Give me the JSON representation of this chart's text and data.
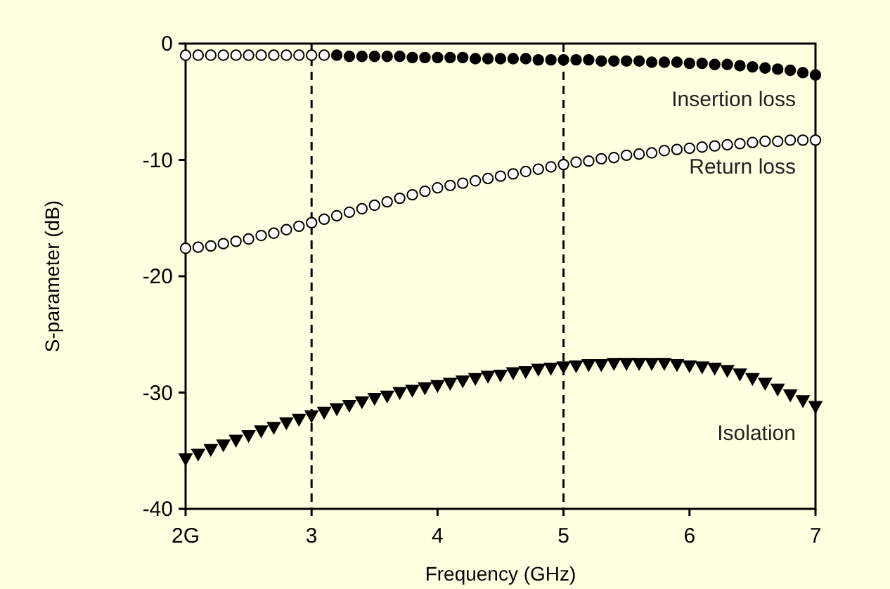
{
  "chart_data": {
    "type": "scatter",
    "xlabel": "Frequency (GHz)",
    "ylabel": "S-parameter (dB)",
    "xlim": [
      2,
      7
    ],
    "xticks": [
      {
        "value": 2,
        "label": "2G"
      },
      3,
      4,
      5,
      6,
      7
    ],
    "ylim": [
      -40,
      0
    ],
    "yticks": [
      -40,
      -30,
      -20,
      -10,
      0
    ],
    "ref_lines": [
      {
        "axis": "x",
        "value": 3,
        "color": "#000000",
        "line_style": "dashed"
      },
      {
        "axis": "x",
        "value": 5,
        "color": "#000000",
        "line_style": "dashed"
      }
    ],
    "series": [
      {
        "color": "#ffffff",
        "marker": "circle",
        "x": [
          2.0,
          2.1,
          2.2,
          2.3,
          2.4,
          2.5,
          2.6,
          2.7,
          2.8,
          2.9,
          3.0,
          3.1
        ],
        "values": [
          -1.0,
          -1.0,
          -1.0,
          -1.0,
          -1.0,
          -1.0,
          -1.0,
          -1.0,
          -1.0,
          -1.0,
          -1.0,
          -1.0
        ]
      },
      {
        "name": "Insertion loss",
        "color": "#000000",
        "marker": "circle",
        "x": [
          3.2,
          3.3,
          3.4,
          3.5,
          3.6,
          3.7,
          3.8,
          3.9,
          4.0,
          4.1,
          4.2,
          4.3,
          4.4,
          4.5,
          4.6,
          4.7,
          4.8,
          4.9,
          5.0,
          5.1,
          5.2,
          5.3,
          5.4,
          5.5,
          5.6,
          5.7,
          5.8,
          5.9,
          6.0,
          6.1,
          6.2,
          6.3,
          6.4,
          6.5,
          6.6,
          6.7,
          6.8,
          6.9,
          7.0
        ],
        "values": [
          -1.0,
          -1.1,
          -1.1,
          -1.1,
          -1.1,
          -1.1,
          -1.2,
          -1.2,
          -1.2,
          -1.2,
          -1.2,
          -1.3,
          -1.3,
          -1.3,
          -1.3,
          -1.3,
          -1.4,
          -1.4,
          -1.4,
          -1.4,
          -1.4,
          -1.5,
          -1.5,
          -1.5,
          -1.5,
          -1.6,
          -1.6,
          -1.6,
          -1.7,
          -1.7,
          -1.8,
          -1.8,
          -1.9,
          -2.0,
          -2.1,
          -2.2,
          -2.3,
          -2.5,
          -2.7
        ]
      },
      {
        "name": "Return loss",
        "color": "#ffffff",
        "marker": "circle",
        "x": [
          2.0,
          2.1,
          2.2,
          2.3,
          2.4,
          2.5,
          2.6,
          2.7,
          2.8,
          2.9,
          3.0,
          3.1,
          3.2,
          3.3,
          3.4,
          3.5,
          3.6,
          3.7,
          3.8,
          3.9,
          4.0,
          4.1,
          4.2,
          4.3,
          4.4,
          4.5,
          4.6,
          4.7,
          4.8,
          4.9,
          5.0,
          5.1,
          5.2,
          5.3,
          5.4,
          5.5,
          5.6,
          5.7,
          5.8,
          5.9,
          6.0,
          6.1,
          6.2,
          6.3,
          6.4,
          6.5,
          6.6,
          6.7,
          6.8,
          6.9,
          7.0
        ],
        "values": [
          -17.6,
          -17.5,
          -17.4,
          -17.2,
          -17.0,
          -16.8,
          -16.5,
          -16.3,
          -16.0,
          -15.7,
          -15.4,
          -15.1,
          -14.8,
          -14.5,
          -14.2,
          -13.9,
          -13.6,
          -13.3,
          -13.0,
          -12.7,
          -12.4,
          -12.2,
          -12.0,
          -11.8,
          -11.6,
          -11.4,
          -11.2,
          -11.0,
          -10.8,
          -10.6,
          -10.4,
          -10.2,
          -10.1,
          -9.9,
          -9.8,
          -9.6,
          -9.5,
          -9.4,
          -9.2,
          -9.1,
          -9.0,
          -8.9,
          -8.8,
          -8.7,
          -8.6,
          -8.5,
          -8.4,
          -8.4,
          -8.3,
          -8.3,
          -8.3
        ]
      },
      {
        "name": "Isolation",
        "color": "#000000",
        "marker": "triangle",
        "x": [
          2.0,
          2.1,
          2.2,
          2.3,
          2.4,
          2.5,
          2.6,
          2.7,
          2.8,
          2.9,
          3.0,
          3.1,
          3.2,
          3.3,
          3.4,
          3.5,
          3.6,
          3.7,
          3.8,
          3.9,
          4.0,
          4.1,
          4.2,
          4.3,
          4.4,
          4.5,
          4.6,
          4.7,
          4.8,
          4.9,
          5.0,
          5.1,
          5.2,
          5.3,
          5.4,
          5.5,
          5.6,
          5.7,
          5.8,
          5.9,
          6.0,
          6.1,
          6.2,
          6.3,
          6.4,
          6.5,
          6.6,
          6.7,
          6.8,
          6.9,
          7.0
        ],
        "values": [
          -35.7,
          -35.3,
          -34.9,
          -34.5,
          -34.1,
          -33.7,
          -33.3,
          -33.0,
          -32.6,
          -32.3,
          -32.0,
          -31.7,
          -31.4,
          -31.1,
          -30.8,
          -30.5,
          -30.3,
          -30.0,
          -29.8,
          -29.6,
          -29.4,
          -29.2,
          -29.0,
          -28.8,
          -28.6,
          -28.5,
          -28.3,
          -28.2,
          -28.0,
          -27.9,
          -27.8,
          -27.7,
          -27.6,
          -27.6,
          -27.5,
          -27.5,
          -27.5,
          -27.5,
          -27.5,
          -27.6,
          -27.7,
          -27.8,
          -27.9,
          -28.1,
          -28.4,
          -28.8,
          -29.2,
          -29.7,
          -30.2,
          -30.7,
          -31.2
        ]
      }
    ]
  }
}
